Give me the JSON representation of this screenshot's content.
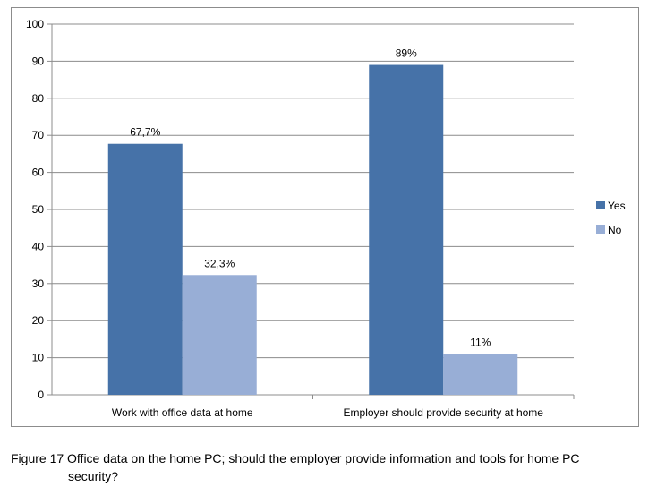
{
  "chart_data": {
    "type": "bar",
    "categories": [
      "Work with office data at home",
      "Employer should provide security at home"
    ],
    "series": [
      {
        "name": "Yes",
        "values": [
          67.7,
          89
        ],
        "labels": [
          "67,7%",
          "89%"
        ],
        "color": "#4672a8"
      },
      {
        "name": "No",
        "values": [
          32.3,
          11
        ],
        "labels": [
          "32,3%",
          "11%"
        ],
        "color": "#98aed6"
      }
    ],
    "ylim": [
      0,
      100
    ],
    "yticks": [
      0,
      10,
      20,
      30,
      40,
      50,
      60,
      70,
      80,
      90,
      100
    ],
    "grid": true,
    "legend": "right"
  },
  "caption": {
    "line1": "Figure 17 Office data on the home PC; should the employer provide information and tools for home PC",
    "line2": "security?"
  }
}
